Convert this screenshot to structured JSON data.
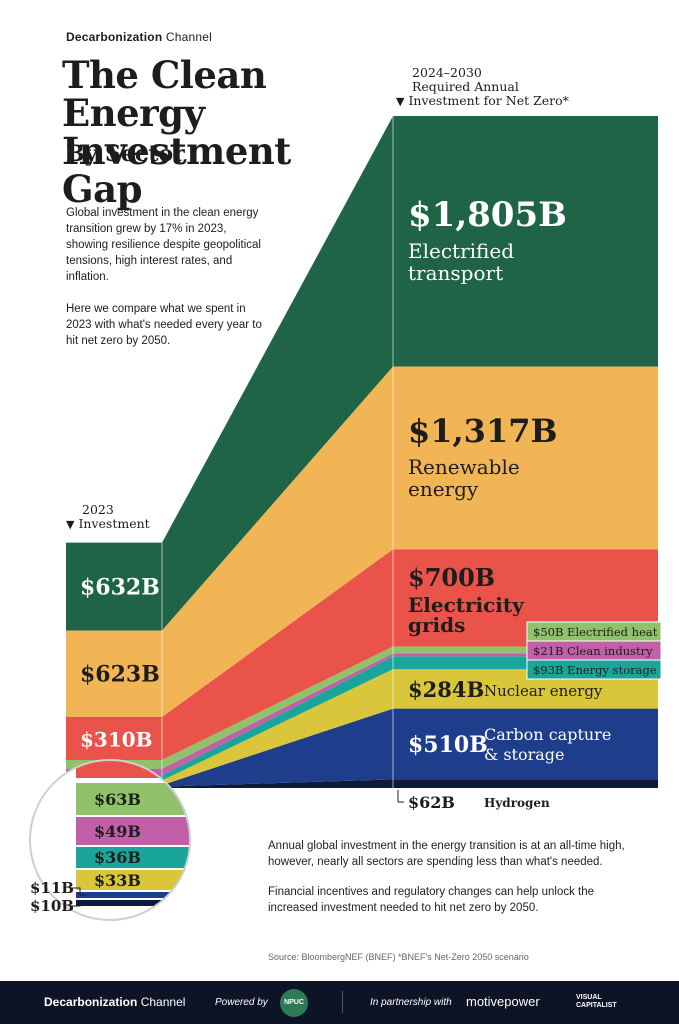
{
  "brand": {
    "bold": "Decarbonization",
    "light": "Channel"
  },
  "title_line1": "The Clean Energy",
  "title_line2": "Investment Gap",
  "subtitle": "By Sector",
  "intro_p1": "Global investment in the clean energy transition grew by 17% in 2023, showing resilience despite geopolitical tensions, high interest rates, and inflation.",
  "intro_p2": "Here we compare what we spent in 2023 with what's needed every year to hit net zero by 2050.",
  "header_2023": {
    "line1": "2023",
    "line2": "Investment"
  },
  "header_2030": {
    "line1": "2024–2030",
    "line2": "Required Annual",
    "line3": "Investment for Net Zero*"
  },
  "bottom_p1": "Annual global investment in the energy transition is at an all-time high, however, nearly all sectors are spending less than what's needed.",
  "bottom_p2": "Financial incentives and regulatory changes can help unlock the increased investment needed to hit net zero by 2050.",
  "source": "Source: BloombergNEF (BNEF)   *BNEF's Net-Zero 2050 scenario",
  "footer": {
    "brand_bold": "Decarbonization",
    "brand_light": "Channel",
    "powered": "Powered by",
    "npuc": "NPUC",
    "partnership": "In partnership with",
    "motive": "motivepower",
    "vc": "VISUAL CAPITALIST"
  },
  "colors": {
    "electrified_transport": "#1f6446",
    "renewable_energy": "#f2b555",
    "electricity_grids": "#e9534a",
    "electrified_heat": "#8fc26a",
    "clean_industry": "#c15fa8",
    "energy_storage": "#1aa59a",
    "nuclear_energy": "#d9c63a",
    "carbon_capture": "#1e3d8a",
    "hydrogen": "#0e1a3a"
  },
  "chart_data": {
    "type": "bar",
    "categories": [
      "2023 Investment",
      "2024–2030 Required Annual Investment for Net Zero*"
    ],
    "series": [
      {
        "name": "Hydrogen",
        "label_2030": "Hydrogen",
        "values": [
          10,
          62
        ],
        "labels": [
          "$10B",
          "$62B"
        ]
      },
      {
        "name": "Carbon capture & storage",
        "label_2030": "Carbon capture & storage",
        "values": [
          11,
          510
        ],
        "labels": [
          "$11B",
          "$510B"
        ]
      },
      {
        "name": "Nuclear energy",
        "label_2030": "Nuclear energy",
        "values": [
          33,
          284
        ],
        "labels": [
          "$33B",
          "$284B"
        ]
      },
      {
        "name": "Energy storage",
        "label_2030": "Energy storage",
        "values": [
          36,
          93
        ],
        "labels": [
          "$36B",
          "$93B"
        ]
      },
      {
        "name": "Clean industry",
        "label_2030": "Clean industry",
        "values": [
          49,
          21
        ],
        "labels": [
          "$49B",
          "$21B"
        ]
      },
      {
        "name": "Electrified heat",
        "label_2030": "Electrified heat",
        "values": [
          63,
          50
        ],
        "labels": [
          "$63B",
          "$50B"
        ]
      },
      {
        "name": "Electricity grids",
        "label_2030": "Electricity grids",
        "values": [
          310,
          700
        ],
        "labels": [
          "$310B",
          "$700B"
        ]
      },
      {
        "name": "Renewable energy",
        "label_2030": "Renewable energy",
        "values": [
          623,
          1317
        ],
        "labels": [
          "$623B",
          "$1,317B"
        ]
      },
      {
        "name": "Electrified transport",
        "label_2030": "Electrified transport",
        "values": [
          632,
          1805
        ],
        "labels": [
          "$632B",
          "$1,805B"
        ]
      }
    ]
  }
}
